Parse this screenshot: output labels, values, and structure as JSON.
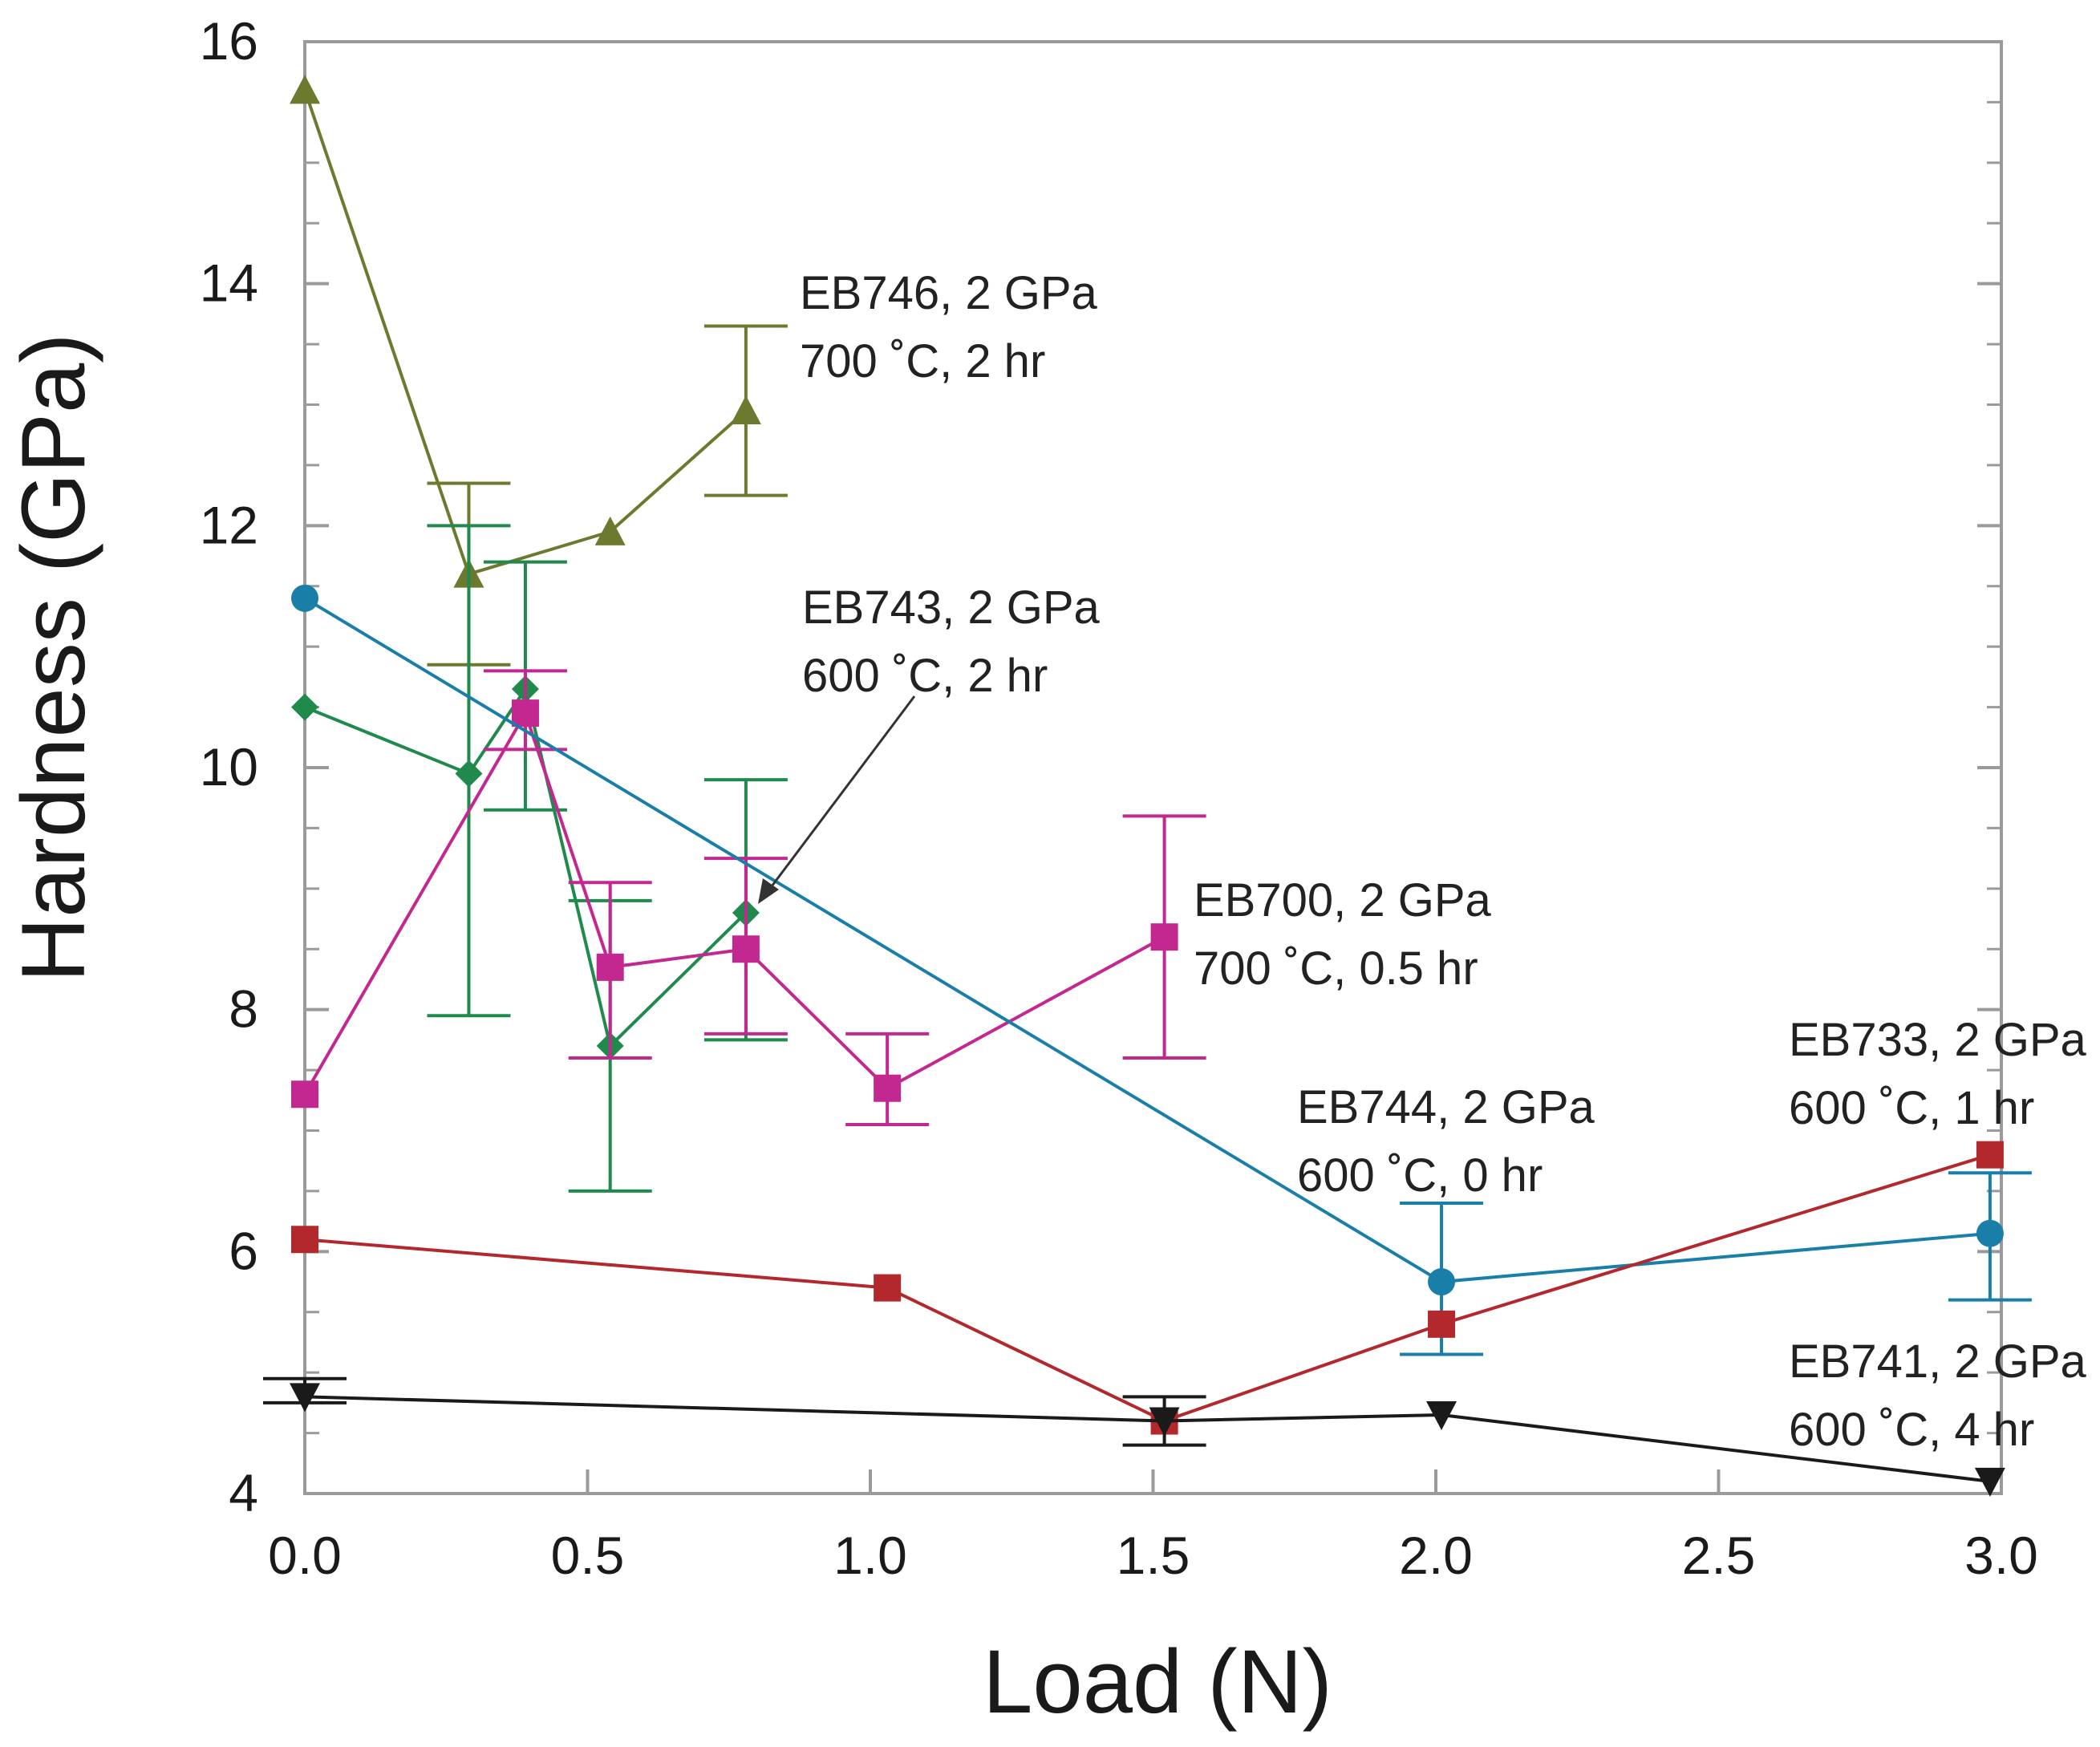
{
  "chart_data": {
    "type": "line",
    "xlabel": "Load (N)",
    "ylabel": "Hardness (GPa)",
    "xlim": [
      0,
      3.0
    ],
    "ylim": [
      4,
      16
    ],
    "x_ticks": [
      0.0,
      0.5,
      1.0,
      1.5,
      2.0,
      2.5,
      3.0
    ],
    "x_tick_labels": [
      "0.0",
      "0.5",
      "1.0",
      "1.5",
      "2.0",
      "2.5",
      "3.0"
    ],
    "y_ticks": [
      4,
      6,
      8,
      10,
      12,
      14,
      16
    ],
    "y_tick_labels": [
      "4",
      "6",
      "8",
      "10",
      "12",
      "14",
      "16"
    ],
    "grid": false,
    "series": [
      {
        "label_lines": [
          "EB746, 2 GPa",
          "700 ˚C, 2 hr"
        ],
        "color": "#6b7a2e",
        "marker": "triangle-up",
        "points": [
          {
            "x": 0.0,
            "y": 15.6
          },
          {
            "x": 0.29,
            "y": 11.6,
            "err_low": 10.85,
            "err_high": 12.35
          },
          {
            "x": 0.54,
            "y": 11.95
          },
          {
            "x": 0.78,
            "y": 12.95,
            "err_low": 12.25,
            "err_high": 13.65
          }
        ]
      },
      {
        "label_lines": [
          "EB743, 2 GPa",
          "600 ˚C, 2 hr"
        ],
        "color": "#1f8a4c",
        "marker": "diamond",
        "points": [
          {
            "x": 0.0,
            "y": 10.5
          },
          {
            "x": 0.29,
            "y": 9.95,
            "err_low": 7.95,
            "err_high": 12.0
          },
          {
            "x": 0.39,
            "y": 10.65,
            "err_low": 9.65,
            "err_high": 11.7
          },
          {
            "x": 0.54,
            "y": 7.7,
            "err_low": 6.5,
            "err_high": 8.9
          },
          {
            "x": 0.78,
            "y": 8.8,
            "err_low": 7.75,
            "err_high": 9.9
          }
        ]
      },
      {
        "label_lines": [
          "EB700, 2 GPa",
          "700 ˚C, 0.5 hr"
        ],
        "color": "#c2288f",
        "marker": "square",
        "points": [
          {
            "x": 0.0,
            "y": 7.3
          },
          {
            "x": 0.39,
            "y": 10.45,
            "err_low": 10.15,
            "err_high": 10.8
          },
          {
            "x": 0.54,
            "y": 8.35,
            "err_low": 7.6,
            "err_high": 9.05
          },
          {
            "x": 0.78,
            "y": 8.5,
            "err_low": 7.8,
            "err_high": 9.25
          },
          {
            "x": 1.03,
            "y": 7.35,
            "err_low": 7.05,
            "err_high": 7.8
          },
          {
            "x": 1.52,
            "y": 8.6,
            "err_low": 7.6,
            "err_high": 9.6
          }
        ]
      },
      {
        "label_lines": [
          "EB744, 2 GPa",
          "600 ˚C, 0 hr"
        ],
        "color": "#1a7fa8",
        "marker": "circle",
        "points": [
          {
            "x": 0.0,
            "y": 11.4
          },
          {
            "x": 2.01,
            "y": 5.75,
            "err_low": 5.15,
            "err_high": 6.4
          },
          {
            "x": 2.98,
            "y": 6.15,
            "err_low": 5.6,
            "err_high": 6.65
          }
        ]
      },
      {
        "label_lines": [
          "EB733, 2 GPa",
          "600 ˚C, 1 hr"
        ],
        "color": "#b3282d",
        "marker": "square",
        "points": [
          {
            "x": 0.0,
            "y": 6.1
          },
          {
            "x": 1.03,
            "y": 5.7
          },
          {
            "x": 1.52,
            "y": 4.6
          },
          {
            "x": 2.01,
            "y": 5.4
          },
          {
            "x": 2.98,
            "y": 6.8
          }
        ]
      },
      {
        "label_lines": [
          "EB741, 2 GPa",
          "600 ˚C, 4 hr"
        ],
        "color": "#1a1a1a",
        "marker": "triangle-down",
        "points": [
          {
            "x": 0.0,
            "y": 4.8,
            "err_low": 4.75,
            "err_high": 4.95
          },
          {
            "x": 1.52,
            "y": 4.6,
            "err_low": 4.4,
            "err_high": 4.8
          },
          {
            "x": 2.01,
            "y": 4.65
          },
          {
            "x": 2.98,
            "y": 4.1
          }
        ]
      }
    ]
  }
}
